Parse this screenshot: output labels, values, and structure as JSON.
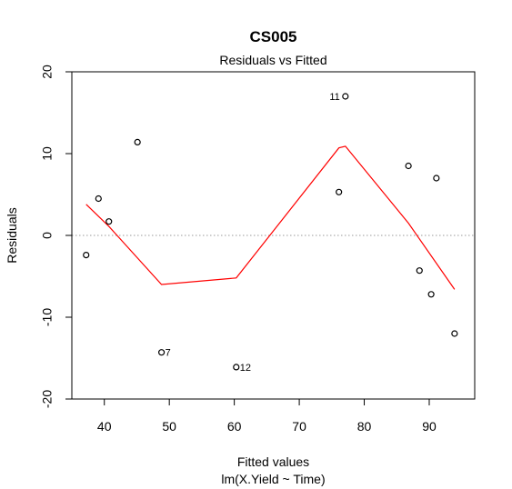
{
  "chart_data": {
    "type": "scatter",
    "title": "CS005",
    "subtitle": "Residuals vs Fitted",
    "xlabel": "Fitted values",
    "xlabel_sub": "lm(X.Yield ~ Time)",
    "ylabel": "Residuals",
    "xlim": [
      35,
      97
    ],
    "ylim": [
      -20,
      20
    ],
    "x_ticks": [
      40,
      50,
      60,
      70,
      80,
      90
    ],
    "y_ticks": [
      20,
      10,
      0,
      -10,
      -20
    ],
    "grid": false,
    "reference_line": {
      "y": 0,
      "style": "dotted",
      "color": "#9a9a9a"
    },
    "points": [
      {
        "x": 37.2,
        "y": -2.4,
        "label": ""
      },
      {
        "x": 39.1,
        "y": 4.5,
        "label": ""
      },
      {
        "x": 40.7,
        "y": 1.7,
        "label": ""
      },
      {
        "x": 45.1,
        "y": 11.4,
        "label": ""
      },
      {
        "x": 48.8,
        "y": -14.3,
        "label": "7"
      },
      {
        "x": 60.3,
        "y": -16.1,
        "label": "12"
      },
      {
        "x": 76.1,
        "y": 5.3,
        "label": ""
      },
      {
        "x": 77.1,
        "y": 17.0,
        "label": "11"
      },
      {
        "x": 86.8,
        "y": 8.5,
        "label": ""
      },
      {
        "x": 88.5,
        "y": -4.3,
        "label": ""
      },
      {
        "x": 90.3,
        "y": -7.2,
        "label": ""
      },
      {
        "x": 91.1,
        "y": 7.0,
        "label": ""
      },
      {
        "x": 93.9,
        "y": -12.0,
        "label": ""
      }
    ],
    "smoother": {
      "color": "#ff0000",
      "points": [
        {
          "x": 37.2,
          "y": 3.8
        },
        {
          "x": 40.7,
          "y": 1.1
        },
        {
          "x": 48.8,
          "y": -6.0
        },
        {
          "x": 60.3,
          "y": -5.2
        },
        {
          "x": 76.1,
          "y": 10.7
        },
        {
          "x": 77.1,
          "y": 10.9
        },
        {
          "x": 86.8,
          "y": 1.5
        },
        {
          "x": 93.9,
          "y": -6.6
        }
      ]
    },
    "colors": {
      "axis": "#000000",
      "points": "#000000",
      "smoother": "#ff0000",
      "reference": "#9a9a9a"
    }
  }
}
